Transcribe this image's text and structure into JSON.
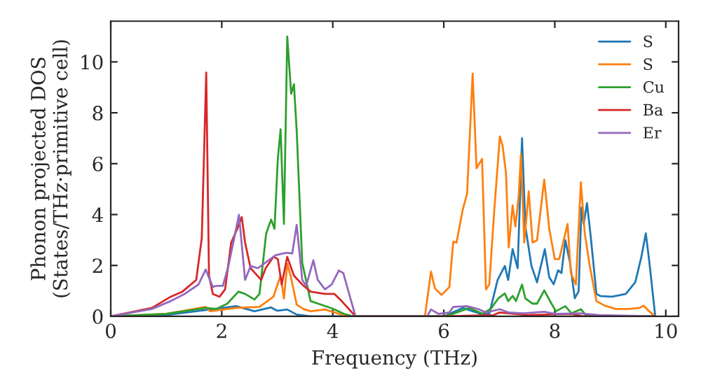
{
  "chart_data": {
    "type": "line",
    "xlabel": "Frequency (THz)",
    "ylabel": "Phonon projected DOS\n(States/THz·primitive cell)",
    "xlim": [
      0,
      10.23
    ],
    "ylim": [
      0,
      11.6
    ],
    "xticks": [
      0,
      2,
      4,
      6,
      8,
      10
    ],
    "yticks": [
      0,
      2,
      4,
      6,
      8,
      10
    ],
    "grid": false,
    "legend": "top right",
    "marker": "none",
    "line_style": "solid",
    "series": [
      {
        "name": "S",
        "color": "#1f77b4",
        "x": [
          0,
          1.0,
          2.26,
          2.59,
          2.89,
          3.0,
          3.18,
          3.35,
          3.6,
          6.0,
          6.34,
          6.66,
          6.82,
          6.97,
          7.1,
          7.16,
          7.24,
          7.33,
          7.41,
          7.47,
          7.58,
          7.68,
          7.82,
          7.9,
          7.98,
          8.06,
          8.12,
          8.19,
          8.27,
          8.36,
          8.43,
          8.48,
          8.52,
          8.58,
          8.65,
          8.75,
          8.82,
          9.03,
          9.28,
          9.45,
          9.56,
          9.64,
          9.7,
          9.81
        ],
        "values": [
          0,
          0.05,
          0.4,
          0.2,
          0.35,
          0.22,
          0.27,
          0.07,
          0,
          0,
          0.33,
          0.1,
          0.1,
          1.43,
          1.98,
          1.43,
          2.64,
          1.89,
          7.0,
          3.53,
          1.98,
          1.34,
          2.64,
          1.54,
          1.26,
          1.81,
          1.7,
          2.99,
          2.16,
          0.71,
          0.99,
          4.27,
          3.63,
          4.45,
          3.08,
          0.88,
          0.8,
          0.77,
          0.88,
          1.34,
          2.34,
          3.26,
          2.2,
          0
        ]
      },
      {
        "name": "S",
        "color": "#ff7f0e",
        "x": [
          0,
          1.0,
          1.71,
          1.79,
          2.26,
          2.68,
          2.93,
          3.06,
          3.12,
          3.18,
          3.24,
          3.35,
          3.47,
          3.6,
          3.86,
          4.11,
          4.36,
          5.66,
          5.77,
          5.84,
          5.96,
          6.1,
          6.17,
          6.23,
          6.34,
          6.42,
          6.52,
          6.59,
          6.69,
          6.76,
          6.82,
          6.91,
          7.01,
          7.06,
          7.12,
          7.17,
          7.24,
          7.29,
          7.35,
          7.39,
          7.45,
          7.53,
          7.6,
          7.68,
          7.81,
          7.9,
          8.0,
          8.08,
          8.17,
          8.23,
          8.29,
          8.38,
          8.47,
          8.54,
          8.63,
          8.75,
          8.9,
          9.1,
          9.35,
          9.52,
          9.6,
          9.7,
          9.81
        ],
        "values": [
          0,
          0.1,
          0.37,
          0.2,
          0.33,
          0.37,
          0.77,
          1.6,
          0.7,
          2.07,
          1.6,
          0.46,
          0.29,
          0.2,
          0.27,
          0.1,
          0,
          0,
          1.76,
          1.1,
          0.84,
          1.15,
          2.93,
          2.9,
          4.18,
          4.82,
          9.54,
          5.82,
          6.19,
          1.06,
          1.25,
          4.18,
          7.07,
          6.7,
          5.64,
          2.71,
          4.36,
          3.53,
          4.73,
          6.37,
          2.9,
          4.91,
          2.9,
          2.99,
          5.37,
          3.44,
          2.25,
          2.25,
          3.08,
          3.63,
          1.7,
          1.25,
          5.27,
          3.26,
          1.98,
          0.6,
          0.42,
          0.29,
          0.29,
          0.33,
          0.42,
          0.2,
          0
        ]
      },
      {
        "name": "Cu",
        "color": "#2ca02c",
        "x": [
          0,
          1.0,
          1.71,
          1.9,
          2.1,
          2.3,
          2.42,
          2.59,
          2.68,
          2.8,
          2.89,
          2.95,
          3.01,
          3.06,
          3.12,
          3.18,
          3.25,
          3.3,
          3.35,
          3.45,
          3.6,
          3.8,
          4.0,
          4.2,
          4.36,
          6.0,
          6.17,
          6.46,
          6.7,
          6.85,
          6.98,
          7.1,
          7.16,
          7.24,
          7.3,
          7.41,
          7.47,
          7.6,
          7.68,
          7.81,
          7.94,
          8.02,
          8.19,
          8.3,
          8.47,
          8.56,
          8.8,
          9.81
        ],
        "values": [
          0,
          0.1,
          0.33,
          0.29,
          0.5,
          0.97,
          0.88,
          0.66,
          0.88,
          3.26,
          3.8,
          3.44,
          6.19,
          7.35,
          3.63,
          11.0,
          8.75,
          9.12,
          7.3,
          2.1,
          0.6,
          0.45,
          0.3,
          0.1,
          0,
          0,
          0.1,
          0.33,
          0.1,
          0.3,
          0.7,
          0.9,
          0.6,
          0.8,
          0.6,
          1.25,
          0.7,
          0.5,
          0.5,
          1.02,
          0.5,
          0.2,
          0.4,
          0.12,
          0.28,
          0.05,
          0,
          0
        ]
      },
      {
        "name": "Ba",
        "color": "#d62728",
        "x": [
          0,
          0.74,
          1.08,
          1.29,
          1.54,
          1.64,
          1.72,
          1.77,
          1.84,
          1.96,
          2.06,
          2.17,
          2.28,
          2.36,
          2.42,
          2.52,
          2.6,
          2.71,
          2.79,
          2.93,
          3.01,
          3.08,
          3.18,
          3.3,
          3.45,
          3.6,
          3.86,
          4.03,
          4.16,
          4.41,
          6.0,
          6.9,
          7.0,
          7.5,
          8.3,
          8.5,
          9.81
        ],
        "values": [
          0,
          0.33,
          0.77,
          0.97,
          1.43,
          3.08,
          9.58,
          1.6,
          0.88,
          0.77,
          1.06,
          2.9,
          3.44,
          3.9,
          2.9,
          1.89,
          1.7,
          1.43,
          1.89,
          2.34,
          2.25,
          1.25,
          2.34,
          1.6,
          1.25,
          0.97,
          0.88,
          0.88,
          0.6,
          0,
          0,
          0.05,
          0.15,
          0.05,
          0.1,
          0,
          0
        ]
      },
      {
        "name": "Er",
        "color": "#9467bd",
        "x": [
          0,
          0.74,
          1.08,
          1.33,
          1.58,
          1.71,
          1.84,
          1.9,
          2.02,
          2.12,
          2.31,
          2.42,
          2.52,
          2.65,
          2.97,
          3.1,
          3.18,
          3.27,
          3.35,
          3.45,
          3.52,
          3.65,
          3.73,
          3.86,
          3.98,
          4.11,
          4.19,
          4.32,
          4.41,
          5.7,
          5.77,
          5.9,
          6.1,
          6.17,
          6.42,
          6.63,
          6.76,
          7.01,
          7.17,
          7.43,
          7.81,
          8.0,
          8.45,
          8.8,
          9.81
        ],
        "values": [
          0,
          0.29,
          0.6,
          0.88,
          1.25,
          1.84,
          1.15,
          1.2,
          1.2,
          1.98,
          3.99,
          1.43,
          1.98,
          1.89,
          2.4,
          2.47,
          2.5,
          2.47,
          3.6,
          1.43,
          1.2,
          2.2,
          1.43,
          1.06,
          1.25,
          1.8,
          1.7,
          0.69,
          0,
          0,
          0.27,
          0.1,
          0.15,
          0.37,
          0.4,
          0.28,
          0.15,
          0.28,
          0.15,
          0.12,
          0.18,
          0.1,
          0.12,
          0.05,
          0
        ]
      }
    ]
  }
}
